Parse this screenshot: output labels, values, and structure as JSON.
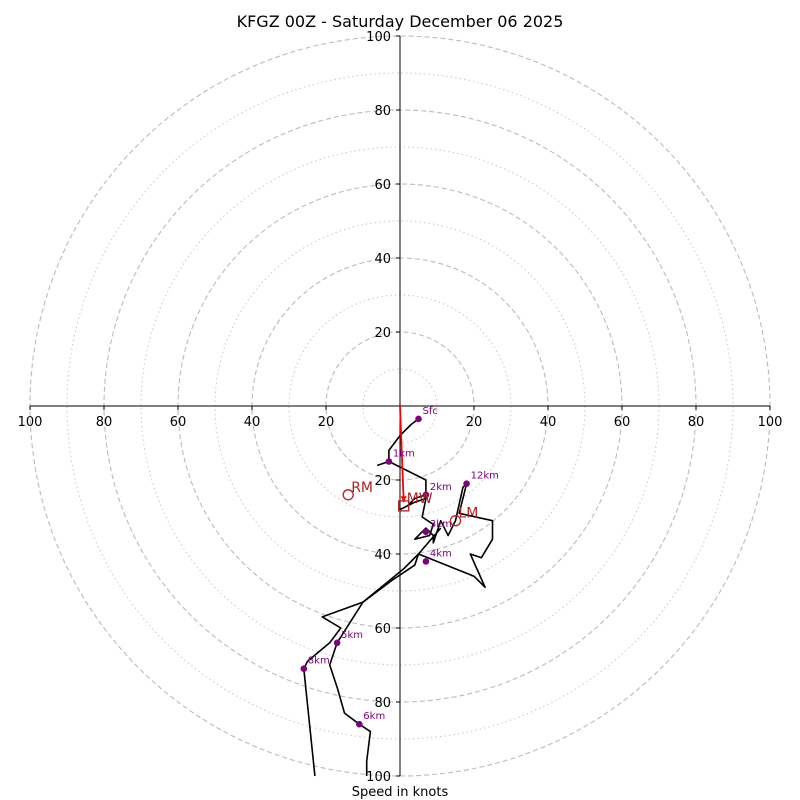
{
  "chart_data": {
    "type": "scatter",
    "title": "KFGZ 00Z - Saturday December 06 2025",
    "xlabel": "Speed in knots",
    "ylabel": "",
    "xlim": [
      -100,
      100
    ],
    "ylim": [
      -100,
      100
    ],
    "rings_major": [
      20,
      40,
      60,
      80,
      100
    ],
    "rings_minor": [
      10,
      30,
      50,
      70,
      90
    ],
    "x_ticks": [
      {
        "v": -100,
        "label": "100"
      },
      {
        "v": -80,
        "label": "80"
      },
      {
        "v": -60,
        "label": "60"
      },
      {
        "v": -40,
        "label": "40"
      },
      {
        "v": -20,
        "label": "20"
      },
      {
        "v": 20,
        "label": "20"
      },
      {
        "v": 40,
        "label": "40"
      },
      {
        "v": 60,
        "label": "60"
      },
      {
        "v": 80,
        "label": "80"
      },
      {
        "v": 100,
        "label": "100"
      }
    ],
    "y_ticks_upper": [
      {
        "v": 20,
        "label": "20"
      },
      {
        "v": 40,
        "label": "40"
      },
      {
        "v": 60,
        "label": "60"
      },
      {
        "v": 80,
        "label": "80"
      },
      {
        "v": 100,
        "label": "100"
      }
    ],
    "y_ticks_lower": [
      {
        "v": -20,
        "label": "20"
      },
      {
        "v": -40,
        "label": "40"
      },
      {
        "v": -60,
        "label": "60"
      },
      {
        "v": -80,
        "label": "80"
      },
      {
        "v": -100,
        "label": "100"
      }
    ],
    "hodograph": {
      "color": "#000000",
      "points": [
        [
          5,
          -3.5
        ],
        [
          3,
          -5
        ],
        [
          0,
          -8
        ],
        [
          -3,
          -12
        ],
        [
          -3,
          -15
        ],
        [
          -6,
          -16
        ],
        [
          -3,
          -15
        ],
        [
          7,
          -20
        ],
        [
          7,
          -24
        ],
        [
          4,
          -25
        ],
        [
          2,
          -27
        ],
        [
          0,
          -28
        ],
        [
          4,
          -26
        ],
        [
          7,
          -25
        ],
        [
          6,
          -30
        ],
        [
          9,
          -32
        ],
        [
          8,
          -35
        ],
        [
          4,
          -36
        ],
        [
          7,
          -33
        ],
        [
          9,
          -35
        ],
        [
          9,
          -37
        ],
        [
          11,
          -31
        ],
        [
          13,
          -35
        ],
        [
          15,
          -31
        ],
        [
          17,
          -22
        ],
        [
          18,
          -21
        ],
        [
          16,
          -29
        ],
        [
          25,
          -31
        ],
        [
          25,
          -36
        ],
        [
          22,
          -41
        ],
        [
          19,
          -40
        ],
        [
          23,
          -49
        ],
        [
          20,
          -46
        ],
        [
          5,
          -40
        ],
        [
          1,
          -44
        ],
        [
          -10,
          -53
        ],
        [
          -21,
          -57
        ],
        [
          -16,
          -60
        ],
        [
          -19,
          -64
        ],
        [
          -25,
          -69
        ],
        [
          -26,
          -71
        ],
        [
          -23,
          -100
        ]
      ],
      "points2": [
        [
          -9,
          -100
        ],
        [
          -9,
          -96
        ],
        [
          -8,
          -88
        ],
        [
          -11,
          -86
        ],
        [
          -15,
          -83
        ],
        [
          -17,
          -76
        ],
        [
          -19,
          -70
        ],
        [
          -17,
          -64
        ],
        [
          -10,
          -53
        ],
        [
          -2,
          -47
        ],
        [
          4,
          -43
        ],
        [
          5,
          -40
        ],
        [
          11,
          -33
        ]
      ]
    },
    "height_markers": [
      {
        "label": "Sfc",
        "x": 5,
        "y": -3.5
      },
      {
        "label": "1km",
        "x": -3,
        "y": -15
      },
      {
        "label": "2km",
        "x": 7,
        "y": -24
      },
      {
        "label": "3km",
        "x": 7,
        "y": -34
      },
      {
        "label": "4km",
        "x": 7,
        "y": -42
      },
      {
        "label": "5km",
        "x": -17,
        "y": -64
      },
      {
        "label": "6km",
        "x": -11,
        "y": -86
      },
      {
        "label": "8km",
        "x": -26,
        "y": -71
      },
      {
        "label": "12km",
        "x": 18,
        "y": -21
      }
    ],
    "bunkers_shear": {
      "color": "#ff0000",
      "from": [
        0,
        0
      ],
      "to": [
        1,
        -26
      ]
    },
    "storm_motion": [
      {
        "label": "RM",
        "marker": "circle",
        "x": -14,
        "y": -24,
        "color": "#b22222"
      },
      {
        "label": "LM",
        "marker": "circle",
        "x": 15,
        "y": -31,
        "color": "#b22222"
      },
      {
        "label": "MW",
        "marker": "square",
        "x": 1,
        "y": -27,
        "color": "#b22222"
      }
    ]
  }
}
